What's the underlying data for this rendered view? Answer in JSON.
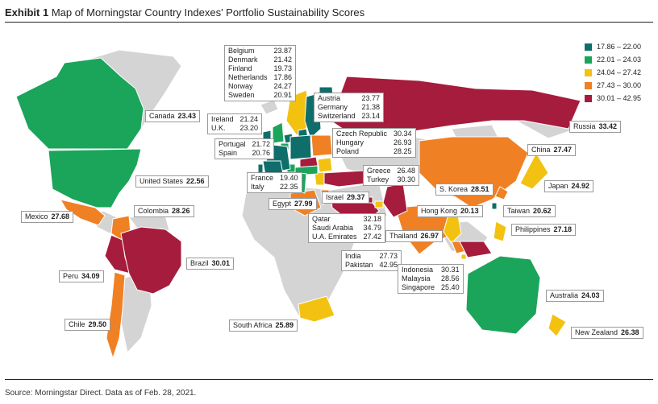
{
  "header": {
    "exhibit": "Exhibit 1",
    "title": "Map of Morningstar Country Indexes' Portfolio Sustainability Scores"
  },
  "source": "Source: Morningstar Direct. Data as of Feb. 28, 2021.",
  "legend": [
    {
      "range": "17.86 – 22.00",
      "color": "#0f6e6a"
    },
    {
      "range": "22.01 – 24.03",
      "color": "#1aa55a"
    },
    {
      "range": "24.04 – 27.42",
      "color": "#f3c211"
    },
    {
      "range": "27.43 – 30.00",
      "color": "#f08024"
    },
    {
      "range": "30.01 – 42.95",
      "color": "#a61c3c"
    }
  ],
  "colors": {
    "land_no_data": "#d4d4d4",
    "border": "#ffffff"
  },
  "chart_data": {
    "type": "choropleth map",
    "countries": [
      {
        "name": "Belgium",
        "value": "23.87"
      },
      {
        "name": "Denmark",
        "value": "21.42"
      },
      {
        "name": "Finland",
        "value": "19.73"
      },
      {
        "name": "Netherlands",
        "value": "17.86"
      },
      {
        "name": "Norway",
        "value": "24.27"
      },
      {
        "name": "Sweden",
        "value": "20.91"
      },
      {
        "name": "Austria",
        "value": "23.77"
      },
      {
        "name": "Germany",
        "value": "21.38"
      },
      {
        "name": "Switzerland",
        "value": "23.14"
      },
      {
        "name": "Ireland",
        "value": "21.24"
      },
      {
        "name": "U.K.",
        "value": "23.20"
      },
      {
        "name": "Portugal",
        "value": "21.72"
      },
      {
        "name": "Spain",
        "value": "20.76"
      },
      {
        "name": "France",
        "value": "19.40"
      },
      {
        "name": "Italy",
        "value": "22.35"
      },
      {
        "name": "Czech Republic",
        "value": "30.34"
      },
      {
        "name": "Hungary",
        "value": "26.93"
      },
      {
        "name": "Poland",
        "value": "28.25"
      },
      {
        "name": "Greece",
        "value": "26.48"
      },
      {
        "name": "Turkey",
        "value": "30.30"
      },
      {
        "name": "Canada",
        "value": "23.43"
      },
      {
        "name": "United States",
        "value": "22.56"
      },
      {
        "name": "Mexico",
        "value": "27.68"
      },
      {
        "name": "Colombia",
        "value": "28.26"
      },
      {
        "name": "Brazil",
        "value": "30.01"
      },
      {
        "name": "Peru",
        "value": "34.09"
      },
      {
        "name": "Chile",
        "value": "29.50"
      },
      {
        "name": "Egypt",
        "value": "27.99"
      },
      {
        "name": "Israel",
        "value": "29.37"
      },
      {
        "name": "Qatar",
        "value": "32.18"
      },
      {
        "name": "Saudi Arabia",
        "value": "34.79"
      },
      {
        "name": "U.A. Emirates",
        "value": "27.42"
      },
      {
        "name": "South Africa",
        "value": "25.89"
      },
      {
        "name": "Russia",
        "value": "33.42"
      },
      {
        "name": "China",
        "value": "27.47"
      },
      {
        "name": "Japan",
        "value": "24.92"
      },
      {
        "name": "S. Korea",
        "value": "28.51"
      },
      {
        "name": "Taiwan",
        "value": "20.62"
      },
      {
        "name": "Hong Kong",
        "value": "20.13"
      },
      {
        "name": "Philippines",
        "value": "27.18"
      },
      {
        "name": "Thailand",
        "value": "26.97"
      },
      {
        "name": "India",
        "value": "27.73"
      },
      {
        "name": "Pakistan",
        "value": "42.95"
      },
      {
        "name": "Indonesia",
        "value": "30.31"
      },
      {
        "name": "Malaysia",
        "value": "28.56"
      },
      {
        "name": "Singapore",
        "value": "25.40"
      },
      {
        "name": "Australia",
        "value": "24.03"
      },
      {
        "name": "New Zealand",
        "value": "26.38"
      }
    ]
  }
}
